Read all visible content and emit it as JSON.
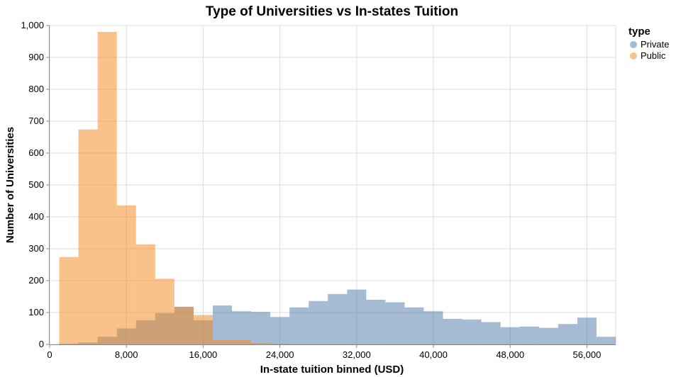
{
  "chart_data": {
    "type": "bar",
    "title": "Type of Universities vs In-states Tuition",
    "xlabel": "In-state tuition binned (USD)",
    "ylabel": "Number of Universities",
    "xlim": [
      0,
      59000
    ],
    "ylim": [
      0,
      1000
    ],
    "bin_width": 2000,
    "bin_start": 1000,
    "x_ticks": [
      0,
      8000,
      16000,
      24000,
      32000,
      40000,
      48000,
      56000
    ],
    "x_tick_labels": [
      "0",
      "8,000",
      "16,000",
      "24,000",
      "32,000",
      "40,000",
      "48,000",
      "56,000"
    ],
    "y_ticks": [
      0,
      100,
      200,
      300,
      400,
      500,
      600,
      700,
      800,
      900,
      1000
    ],
    "y_tick_labels": [
      "0",
      "100",
      "200",
      "300",
      "400",
      "500",
      "600",
      "700",
      "800",
      "900",
      "1,000"
    ],
    "grid": true,
    "legend": {
      "title": "type",
      "position": "top-right"
    },
    "series": [
      {
        "name": "Private",
        "color": "#4c78a8",
        "bins": [
          1000,
          3000,
          5000,
          7000,
          9000,
          11000,
          13000,
          15000,
          17000,
          19000,
          21000,
          23000,
          25000,
          27000,
          29000,
          31000,
          33000,
          35000,
          37000,
          39000,
          41000,
          43000,
          45000,
          47000,
          49000,
          51000,
          53000,
          55000,
          57000
        ],
        "values": [
          2,
          6,
          24,
          50,
          76,
          98,
          118,
          76,
          122,
          104,
          102,
          86,
          116,
          136,
          158,
          172,
          140,
          132,
          116,
          104,
          80,
          78,
          70,
          54,
          56,
          52,
          64,
          84,
          24
        ]
      },
      {
        "name": "Public",
        "color": "#f58518",
        "bins": [
          1000,
          3000,
          5000,
          7000,
          9000,
          11000,
          13000,
          15000,
          17000,
          19000,
          21000,
          23000,
          25000,
          27000
        ],
        "values": [
          274,
          674,
          980,
          436,
          314,
          206,
          118,
          92,
          14,
          14,
          4,
          2,
          1,
          1
        ]
      }
    ]
  }
}
